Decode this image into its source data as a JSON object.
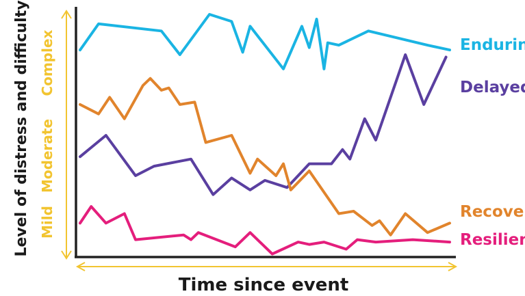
{
  "chart_data": {
    "type": "line",
    "title": "",
    "xlabel": "Time since event",
    "ylabel": "Level of distress and difficulty",
    "xlim": [
      0,
      100
    ],
    "ylim": [
      0,
      100
    ],
    "grid": false,
    "legend": "right (labels at line ends)",
    "level_labels": [
      "Mild",
      "Moderate",
      "Complex"
    ],
    "guide_color": "#f2c430",
    "series": [
      {
        "name": "Enduring",
        "color": "#1ab4e3",
        "x": [
          0,
          5,
          22,
          27,
          35,
          41,
          44,
          46,
          55,
          60,
          62,
          64,
          66,
          67,
          70,
          78,
          94,
          97,
          100
        ],
        "y": [
          85,
          96,
          93,
          83,
          100,
          97,
          84,
          95,
          77,
          95,
          86,
          98,
          77,
          88,
          87,
          93,
          87,
          86,
          85
        ]
      },
      {
        "name": "Delayed",
        "color": "#5a3fa0",
        "x": [
          0,
          7,
          15,
          20,
          30,
          36,
          41,
          46,
          50,
          56,
          62,
          68,
          71,
          73,
          77,
          80,
          88,
          93,
          99
        ],
        "y": [
          40,
          49,
          32,
          36,
          39,
          24,
          31,
          26,
          30,
          27,
          37,
          37,
          43,
          39,
          56,
          47,
          83,
          62,
          82
        ]
      },
      {
        "name": "Recovery",
        "color": "#e1842c",
        "x": [
          0,
          5,
          8,
          12,
          17,
          19,
          22,
          24,
          27,
          31,
          34,
          41,
          46,
          48,
          53,
          55,
          57,
          62,
          70,
          74,
          79,
          81,
          84,
          88,
          94,
          100
        ],
        "y": [
          62,
          58,
          65,
          56,
          70,
          73,
          68,
          69,
          62,
          63,
          46,
          49,
          33,
          39,
          32,
          37,
          26,
          34,
          16,
          17,
          11,
          13,
          7,
          16,
          8,
          12
        ]
      },
      {
        "name": "Resilient",
        "color": "#e41e7c",
        "x": [
          0,
          3,
          7,
          12,
          15,
          28,
          30,
          32,
          42,
          46,
          52,
          59,
          62,
          66,
          72,
          75,
          80,
          90,
          100
        ],
        "y": [
          12,
          19,
          12,
          16,
          5,
          7,
          5,
          8,
          2,
          8,
          -1,
          4,
          3,
          4,
          1,
          5,
          4,
          5,
          4
        ]
      }
    ]
  }
}
